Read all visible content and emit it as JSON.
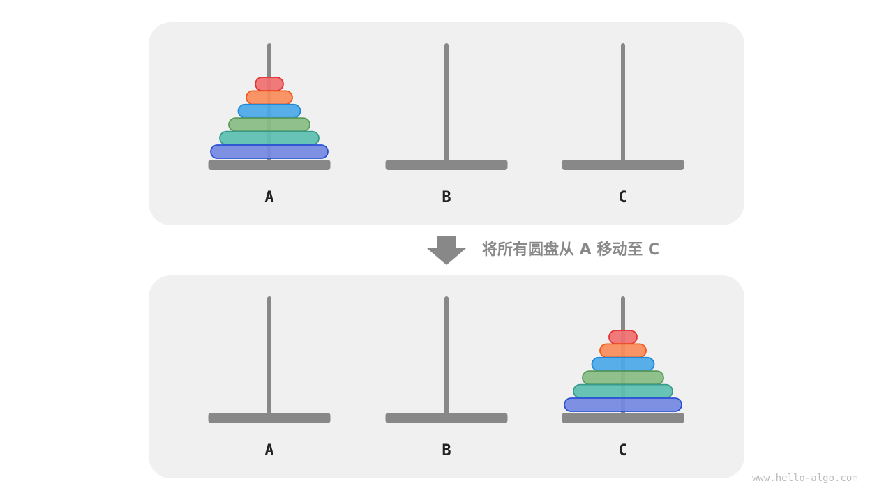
{
  "rod_labels": [
    "A",
    "B",
    "C"
  ],
  "caption": "将所有圆盘从 A 移动至 C",
  "watermark": "www.hello-algo.com",
  "colors": {
    "panel": "#f0f0f0",
    "rod": "#888888",
    "arrow": "#888888"
  },
  "disks": [
    {
      "fill": "#f07070",
      "stroke": "#e53030"
    },
    {
      "fill": "#fa8c5a",
      "stroke": "#f25a1a"
    },
    {
      "fill": "#4aa8e8",
      "stroke": "#1e88d8"
    },
    {
      "fill": "#88bc82",
      "stroke": "#5a9a5a"
    },
    {
      "fill": "#5abfb0",
      "stroke": "#3a9a8a"
    },
    {
      "fill": "#7388e0",
      "stroke": "#2a50d8"
    }
  ],
  "states": [
    {
      "disks_on_rod": "A"
    },
    {
      "disks_on_rod": "C"
    }
  ]
}
